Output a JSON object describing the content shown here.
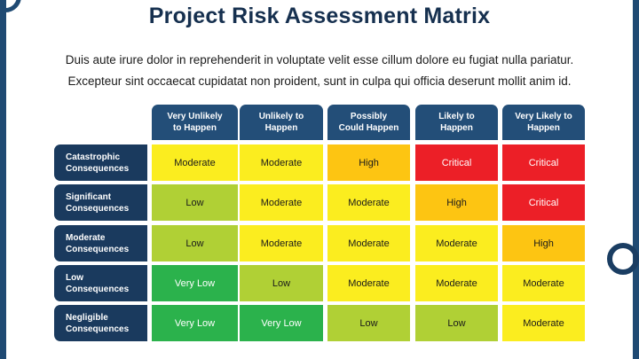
{
  "title": "Project Risk Assessment Matrix",
  "description": [
    "Duis aute irure dolor in reprehenderit in voluptate velit esse cillum dolore eu fugiat nulla pariatur.",
    "Excepteur sint occaecat cupidatat non proident, sunt in culpa qui officia deserunt mollit anim id."
  ],
  "colors": {
    "accent": "#1f4a73",
    "header_bg": "#234e78",
    "row_header_bg": "#1a3a5e",
    "Very Low": "#2bb24c",
    "Low": "#b0d035",
    "Moderate": "#fbed1f",
    "High": "#fdc512",
    "Critical": "#ec1f27"
  },
  "columns": [
    {
      "line1": "Very Unlikely",
      "line2": "to Happen"
    },
    {
      "line1": "Unlikely to",
      "line2": "Happen"
    },
    {
      "line1": "Possibly",
      "line2": "Could Happen"
    },
    {
      "line1": "Likely to",
      "line2": "Happen"
    },
    {
      "line1": "Very Likely to",
      "line2": "Happen"
    }
  ],
  "rows": [
    {
      "line1": "Catastrophic",
      "line2": "Consequences",
      "cells": [
        "Moderate",
        "Moderate",
        "High",
        "Critical",
        "Critical"
      ]
    },
    {
      "line1": "Significant",
      "line2": "Consequences",
      "cells": [
        "Low",
        "Moderate",
        "Moderate",
        "High",
        "Critical"
      ]
    },
    {
      "line1": "Moderate",
      "line2": "Consequences",
      "cells": [
        "Low",
        "Moderate",
        "Moderate",
        "Moderate",
        "High"
      ]
    },
    {
      "line1": "Low",
      "line2": "Consequences",
      "cells": [
        "Very Low",
        "Low",
        "Moderate",
        "Moderate",
        "Moderate"
      ]
    },
    {
      "line1": "Negligible",
      "line2": "Consequences",
      "cells": [
        "Very Low",
        "Very Low",
        "Low",
        "Low",
        "Moderate"
      ]
    }
  ]
}
